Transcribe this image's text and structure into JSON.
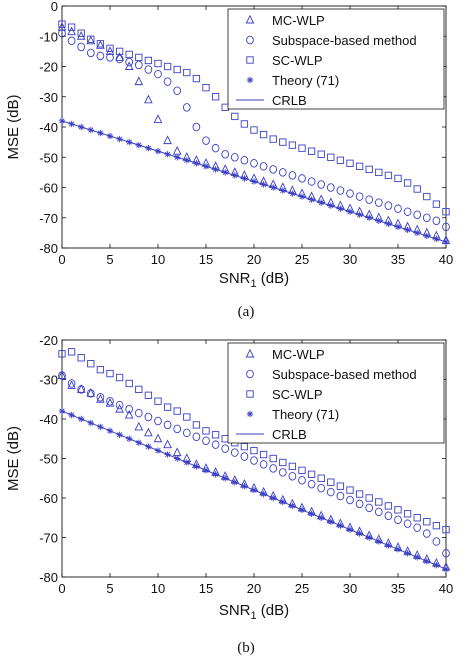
{
  "chart_data": [
    {
      "type": "scatter",
      "panel": "a",
      "caption": "(a)",
      "xlabel_main": "SNR",
      "xlabel_sub": "1",
      "xlabel_unit": "(dB)",
      "ylabel": "MSE (dB)",
      "xlim": [
        0,
        40
      ],
      "ylim": [
        -80,
        0
      ],
      "xticks": [
        "0",
        "5",
        "10",
        "15",
        "20",
        "25",
        "30",
        "35",
        "40"
      ],
      "yticks": [
        "-80",
        "-70",
        "-60",
        "-50",
        "-40",
        "-30",
        "-20",
        "-10",
        "0"
      ],
      "grid": false,
      "legend_position": "top-right",
      "series": [
        {
          "name": "MC-WLP",
          "marker": "triangle",
          "x": [
            0,
            1,
            2,
            3,
            4,
            5,
            6,
            7,
            8,
            9,
            10,
            11,
            12,
            13,
            14,
            15,
            16,
            17,
            18,
            19,
            20,
            21,
            22,
            23,
            24,
            25,
            26,
            27,
            28,
            29,
            30,
            31,
            32,
            33,
            34,
            35,
            36,
            37,
            38,
            39,
            40
          ],
          "y": [
            -7,
            -8.5,
            -10,
            -11.5,
            -13,
            -15,
            -17,
            -20,
            -25,
            -31,
            -37.5,
            -44.5,
            -48,
            -50,
            -51,
            -52,
            -53,
            -54,
            -55,
            -56,
            -57,
            -58,
            -59,
            -60,
            -61,
            -62,
            -63,
            -64,
            -65,
            -66,
            -67,
            -68,
            -69,
            -70,
            -71,
            -72,
            -73,
            -74,
            -75,
            -76,
            -77.5
          ]
        },
        {
          "name": "Subspace-based method",
          "marker": "circle",
          "x": [
            0,
            1,
            2,
            3,
            4,
            5,
            6,
            7,
            8,
            9,
            10,
            11,
            12,
            13,
            14,
            15,
            16,
            17,
            18,
            19,
            20,
            21,
            22,
            23,
            24,
            25,
            26,
            27,
            28,
            29,
            30,
            31,
            32,
            33,
            34,
            35,
            36,
            37,
            38,
            39,
            40
          ],
          "y": [
            -9,
            -11.5,
            -13.5,
            -15.5,
            -16.5,
            -17,
            -17.5,
            -18.5,
            -19.5,
            -21,
            -22.5,
            -25,
            -28,
            -33.5,
            -40,
            -44.5,
            -47,
            -49,
            -50,
            -51,
            -52,
            -53,
            -54,
            -55,
            -56,
            -57,
            -58,
            -59,
            -60,
            -61,
            -62,
            -63,
            -64,
            -65,
            -66,
            -67,
            -68,
            -69,
            -70,
            -71,
            -73
          ]
        },
        {
          "name": "SC-WLP",
          "marker": "square",
          "x": [
            0,
            1,
            2,
            3,
            4,
            5,
            6,
            7,
            8,
            9,
            10,
            11,
            12,
            13,
            14,
            15,
            16,
            17,
            18,
            19,
            20,
            21,
            22,
            23,
            24,
            25,
            26,
            27,
            28,
            29,
            30,
            31,
            32,
            33,
            34,
            35,
            36,
            37,
            38,
            39,
            40
          ],
          "y": [
            -6,
            -7,
            -9,
            -11,
            -12.5,
            -14,
            -15,
            -16,
            -17,
            -18,
            -19,
            -20,
            -21,
            -22,
            -24,
            -27,
            -30,
            -33.5,
            -36.5,
            -39,
            -41,
            -42.5,
            -44,
            -45,
            -46,
            -47,
            -48,
            -49,
            -50,
            -51,
            -52,
            -53,
            -54,
            -55,
            -56,
            -57,
            -58.5,
            -60.5,
            -63,
            -65.5,
            -68
          ]
        },
        {
          "name": "Theory (71)",
          "marker": "star",
          "x": [
            0,
            1,
            2,
            3,
            4,
            5,
            6,
            7,
            8,
            9,
            10,
            11,
            12,
            13,
            14,
            15,
            16,
            17,
            18,
            19,
            20,
            21,
            22,
            23,
            24,
            25,
            26,
            27,
            28,
            29,
            30,
            31,
            32,
            33,
            34,
            35,
            36,
            37,
            38,
            39,
            40
          ],
          "y": [
            -38,
            -39,
            -40,
            -41,
            -42,
            -43,
            -44,
            -45,
            -46,
            -47,
            -48,
            -49,
            -50,
            -51,
            -52,
            -53,
            -54,
            -55,
            -56,
            -57,
            -58,
            -59,
            -60,
            -61,
            -62,
            -63,
            -64,
            -65,
            -66,
            -67,
            -68,
            -69,
            -70,
            -71,
            -72,
            -73,
            -74,
            -75,
            -76,
            -77,
            -78
          ]
        },
        {
          "name": "CRLB",
          "marker": "line",
          "x": [
            0,
            40
          ],
          "y": [
            -38,
            -78
          ]
        }
      ]
    },
    {
      "type": "scatter",
      "panel": "b",
      "caption": "(b)",
      "xlabel_main": "SNR",
      "xlabel_sub": "1",
      "xlabel_unit": "(dB)",
      "ylabel": "MSE (dB)",
      "xlim": [
        0,
        40
      ],
      "ylim": [
        -80,
        -20
      ],
      "xticks": [
        "0",
        "5",
        "10",
        "15",
        "20",
        "25",
        "30",
        "35",
        "40"
      ],
      "yticks": [
        "-80",
        "-70",
        "-60",
        "-50",
        "-40",
        "-30",
        "-20"
      ],
      "grid": false,
      "legend_position": "top-right",
      "series": [
        {
          "name": "MC-WLP",
          "marker": "triangle",
          "x": [
            0,
            1,
            2,
            3,
            4,
            5,
            6,
            7,
            8,
            9,
            10,
            11,
            12,
            13,
            14,
            15,
            16,
            17,
            18,
            19,
            20,
            21,
            22,
            23,
            24,
            25,
            26,
            27,
            28,
            29,
            30,
            31,
            32,
            33,
            34,
            35,
            36,
            37,
            38,
            39,
            40
          ],
          "y": [
            -29,
            -31.5,
            -32.5,
            -33.5,
            -35,
            -36,
            -37.5,
            -39,
            -42,
            -43.5,
            -45,
            -46.5,
            -48.5,
            -50,
            -51.5,
            -52.5,
            -53.5,
            -54.5,
            -55.5,
            -56.5,
            -57.5,
            -58.5,
            -59.5,
            -60.5,
            -61.5,
            -62.5,
            -63.5,
            -64.5,
            -65.5,
            -66.5,
            -67.5,
            -68.5,
            -69.5,
            -70.5,
            -71.5,
            -72.5,
            -73.5,
            -74.5,
            -75.5,
            -76.5,
            -77.5
          ]
        },
        {
          "name": "Subspace-based method",
          "marker": "circle",
          "x": [
            0,
            1,
            2,
            3,
            4,
            5,
            6,
            7,
            8,
            9,
            10,
            11,
            12,
            13,
            14,
            15,
            16,
            17,
            18,
            19,
            20,
            21,
            22,
            23,
            24,
            25,
            26,
            27,
            28,
            29,
            30,
            31,
            32,
            33,
            34,
            35,
            36,
            37,
            38,
            39,
            40
          ],
          "y": [
            -29,
            -31,
            -32.5,
            -33.5,
            -34.5,
            -35.5,
            -36.5,
            -37.5,
            -38.5,
            -39.5,
            -40.5,
            -41.5,
            -42.5,
            -43.5,
            -44.5,
            -45.5,
            -46.5,
            -47.5,
            -48.5,
            -49.5,
            -50.5,
            -51.5,
            -52.5,
            -53.5,
            -54.5,
            -55.5,
            -56.5,
            -57.5,
            -58.5,
            -59.5,
            -60.5,
            -61.5,
            -62.5,
            -63.5,
            -64.5,
            -65.5,
            -66.5,
            -67.5,
            -69,
            -71,
            -74
          ]
        },
        {
          "name": "SC-WLP",
          "marker": "square",
          "x": [
            0,
            1,
            2,
            3,
            4,
            5,
            6,
            7,
            8,
            9,
            10,
            11,
            12,
            13,
            14,
            15,
            16,
            17,
            18,
            19,
            20,
            21,
            22,
            23,
            24,
            25,
            26,
            27,
            28,
            29,
            30,
            31,
            32,
            33,
            34,
            35,
            36,
            37,
            38,
            39,
            40
          ],
          "y": [
            -23.5,
            -23,
            -24.5,
            -26,
            -27.5,
            -28.5,
            -29.5,
            -31,
            -32.5,
            -34,
            -35.5,
            -37,
            -38,
            -39.5,
            -41.5,
            -43,
            -44,
            -45,
            -46,
            -47,
            -48,
            -49,
            -50,
            -51,
            -52,
            -53,
            -54,
            -55,
            -56,
            -57,
            -58,
            -59,
            -60,
            -61,
            -62,
            -63,
            -64,
            -65,
            -66,
            -67,
            -68
          ]
        },
        {
          "name": "Theory (71)",
          "marker": "star",
          "x": [
            0,
            1,
            2,
            3,
            4,
            5,
            6,
            7,
            8,
            9,
            10,
            11,
            12,
            13,
            14,
            15,
            16,
            17,
            18,
            19,
            20,
            21,
            22,
            23,
            24,
            25,
            26,
            27,
            28,
            29,
            30,
            31,
            32,
            33,
            34,
            35,
            36,
            37,
            38,
            39,
            40
          ],
          "y": [
            -38,
            -39,
            -40,
            -41,
            -42,
            -43,
            -44,
            -45,
            -46,
            -47,
            -48,
            -49,
            -50,
            -51,
            -52,
            -53,
            -54,
            -55,
            -56,
            -57,
            -58,
            -59,
            -60,
            -61,
            -62,
            -63,
            -64,
            -65,
            -66,
            -67,
            -68,
            -69,
            -70,
            -71,
            -72,
            -73,
            -74,
            -75,
            -76,
            -77,
            -78
          ]
        },
        {
          "name": "CRLB",
          "marker": "line",
          "x": [
            0,
            40
          ],
          "y": [
            -38,
            -78
          ]
        }
      ]
    }
  ],
  "colors": {
    "series": "#3a3fc4",
    "axis": "#111111",
    "background": "#ffffff"
  }
}
